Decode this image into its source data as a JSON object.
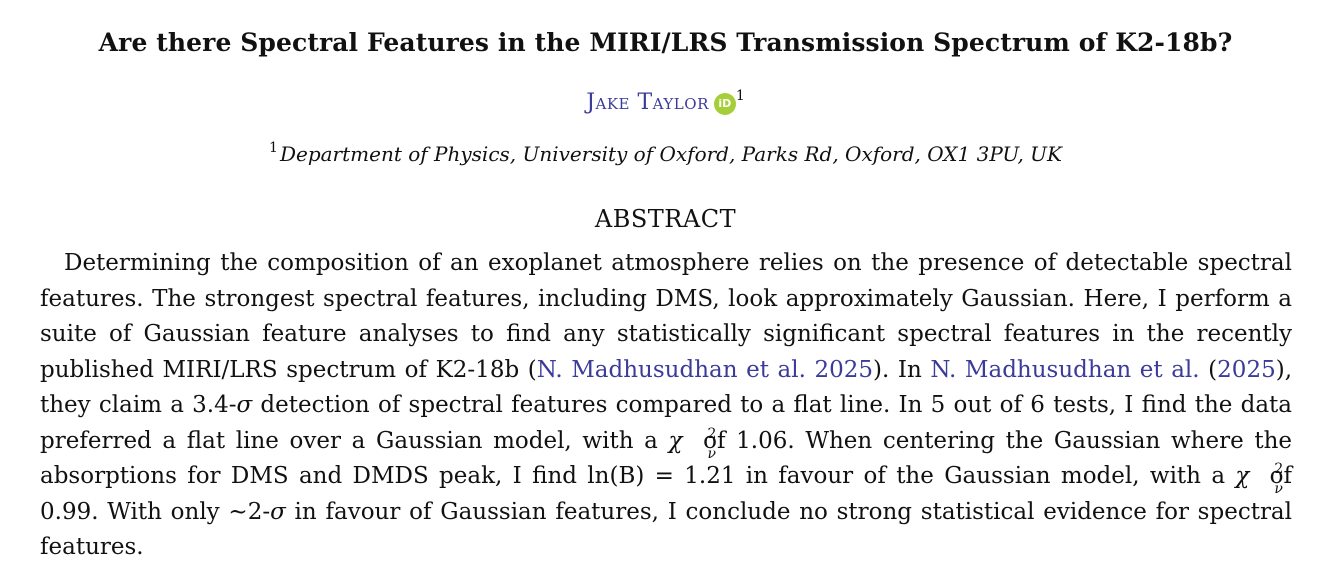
{
  "paper": {
    "title": "Are there Spectral Features in the MIRI/LRS Transmission Spectrum of K2-18b?",
    "author": "Jake Taylor",
    "orcid_label": "iD",
    "author_affil_mark": "1",
    "affiliation_mark": "1",
    "affiliation": "Department of Physics, University of Oxford, Parks Rd, Oxford, OX1 3PU, UK",
    "abstract_heading": "ABSTRACT",
    "abstract": {
      "s1": "Determining the composition of an exoplanet atmosphere relies on the presence of detectable spectral features. The strongest spectral features, including DMS, look approximately Gaussian. Here, I perform a suite of Gaussian feature analyses to find any statistically significant spectral features in the recently published MIRI/LRS spectrum of K2-18b (",
      "cite1": "N. Madhusudhan et al. 2025",
      "s2": "). In ",
      "cite2": "N. Madhusudhan et al.",
      "s2b": " (",
      "cite2_year": "2025",
      "s3": "), they claim a 3.4-",
      "sigma": "σ",
      "s4": " detection of spectral features compared to a flat line. In 5 out of 6 tests, I find the data preferred a flat line over a Gaussian model, with a ",
      "chi": "χ",
      "chi_sup": "2",
      "chi_sub": "ν",
      "s5": " of 1.06. When centering the Gaussian where the absorptions for DMS and DMDS peak, I find ln(B) = 1.21 in favour of the Gaussian model, with a ",
      "s6": " of 0.99. With only ∼2-",
      "s7": " in favour of Gaussian features, I conclude no strong statistical evidence for spectral features."
    }
  }
}
